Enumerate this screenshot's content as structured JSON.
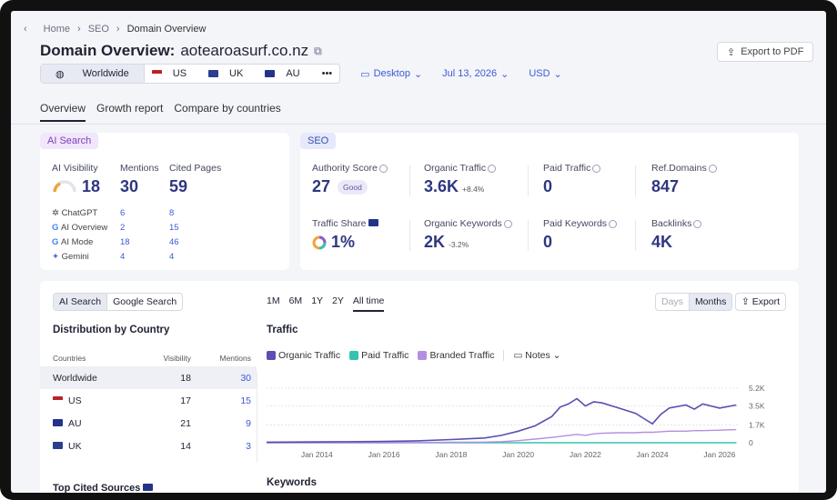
{
  "breadcrumb": [
    "Home",
    "SEO",
    "Domain Overview"
  ],
  "page": {
    "title_prefix": "Domain Overview:",
    "domain": "aotearoasurf.co.nz",
    "export_pdf": "Export to PDF"
  },
  "filters": {
    "regions": [
      "Worldwide",
      "US",
      "UK",
      "AU"
    ],
    "more": "•••",
    "device": "Desktop",
    "date": "Jul 13, 2026",
    "currency": "USD"
  },
  "tabs": [
    "Overview",
    "Growth report",
    "Compare by countries"
  ],
  "ai_search": {
    "badge": "AI Search",
    "headers": [
      "AI Visibility",
      "Mentions",
      "Cited Pages"
    ],
    "visibility": "18",
    "mentions": "30",
    "cited_pages": "59",
    "rows": [
      {
        "name": "ChatGPT",
        "mentions": "6",
        "cited": "8"
      },
      {
        "name": "AI Overview",
        "mentions": "2",
        "cited": "15"
      },
      {
        "name": "AI Mode",
        "mentions": "18",
        "cited": "46"
      },
      {
        "name": "Gemini",
        "mentions": "4",
        "cited": "4"
      }
    ]
  },
  "seo": {
    "badge": "SEO",
    "metrics": [
      {
        "label": "Authority Score",
        "value": "27",
        "extra": "Good"
      },
      {
        "label": "Organic Traffic",
        "value": "3.6K",
        "extra": "+8.4%"
      },
      {
        "label": "Paid Traffic",
        "value": "0",
        "extra": ""
      },
      {
        "label": "Ref.Domains",
        "value": "847",
        "extra": ""
      },
      {
        "label": "Traffic Share",
        "value": "1%",
        "extra": ""
      },
      {
        "label": "Organic Keywords",
        "value": "2K",
        "extra": "-3.2%"
      },
      {
        "label": "Paid Keywords",
        "value": "0",
        "extra": ""
      },
      {
        "label": "Backlinks",
        "value": "4K",
        "extra": ""
      }
    ]
  },
  "bottom": {
    "toggle": [
      "AI Search",
      "Google Search"
    ],
    "ranges": [
      "1M",
      "6M",
      "1Y",
      "2Y",
      "All time"
    ],
    "granularity": [
      "Days",
      "Months"
    ],
    "export": "Export",
    "dist_title": "Distribution by Country",
    "dist_headers": [
      "Countries",
      "Visibility",
      "Mentions"
    ],
    "dist_rows": [
      {
        "country": "Worldwide",
        "visibility": "18",
        "mentions": "30"
      },
      {
        "country": "US",
        "visibility": "17",
        "mentions": "15"
      },
      {
        "country": "AU",
        "visibility": "21",
        "mentions": "9"
      },
      {
        "country": "UK",
        "visibility": "14",
        "mentions": "3"
      }
    ],
    "top_cited": "Top Cited Sources",
    "traffic_title": "Traffic",
    "legend": [
      "Organic Traffic",
      "Paid Traffic",
      "Branded Traffic"
    ],
    "notes": "Notes",
    "keywords_title": "Keywords"
  },
  "colors": {
    "organic": "#5a4fb3",
    "paid": "#35c3b0",
    "branded": "#b58ee0",
    "accent": "#3b5bd6"
  },
  "chart_data": {
    "type": "line",
    "x_ticks": [
      "Jan 2014",
      "Jan 2016",
      "Jan 2018",
      "Jan 2020",
      "Jan 2022",
      "Jan 2024",
      "Jan 2026"
    ],
    "y_ticks": [
      "5.2K",
      "3.5K",
      "1.7K",
      "0"
    ],
    "ylim": [
      0,
      5200
    ],
    "x": [
      "2012-07",
      "2014-01",
      "2016-01",
      "2017-01",
      "2018-01",
      "2019-01",
      "2019-07",
      "2020-01",
      "2020-07",
      "2021-01",
      "2021-04",
      "2021-07",
      "2021-10",
      "2022-01",
      "2022-04",
      "2022-07",
      "2023-01",
      "2023-07",
      "2023-10",
      "2024-01",
      "2024-04",
      "2024-07",
      "2025-01",
      "2025-04",
      "2025-07",
      "2026-01",
      "2026-07"
    ],
    "series": [
      {
        "name": "Organic Traffic",
        "values": [
          50,
          80,
          120,
          180,
          300,
          450,
          700,
          1100,
          1600,
          2500,
          3400,
          3700,
          4200,
          3500,
          3900,
          3800,
          3300,
          2800,
          2300,
          1800,
          2700,
          3300,
          3600,
          3200,
          3700,
          3300,
          3600
        ]
      },
      {
        "name": "Paid Traffic",
        "values": [
          0,
          0,
          0,
          0,
          0,
          0,
          0,
          0,
          0,
          0,
          0,
          0,
          0,
          0,
          0,
          0,
          0,
          0,
          0,
          0,
          0,
          0,
          0,
          0,
          0,
          0,
          0
        ]
      },
      {
        "name": "Branded Traffic",
        "values": [
          0,
          0,
          0,
          20,
          40,
          60,
          100,
          200,
          350,
          500,
          600,
          700,
          800,
          700,
          850,
          900,
          950,
          950,
          1000,
          1000,
          1050,
          1100,
          1100,
          1150,
          1150,
          1200,
          1250
        ]
      }
    ]
  }
}
